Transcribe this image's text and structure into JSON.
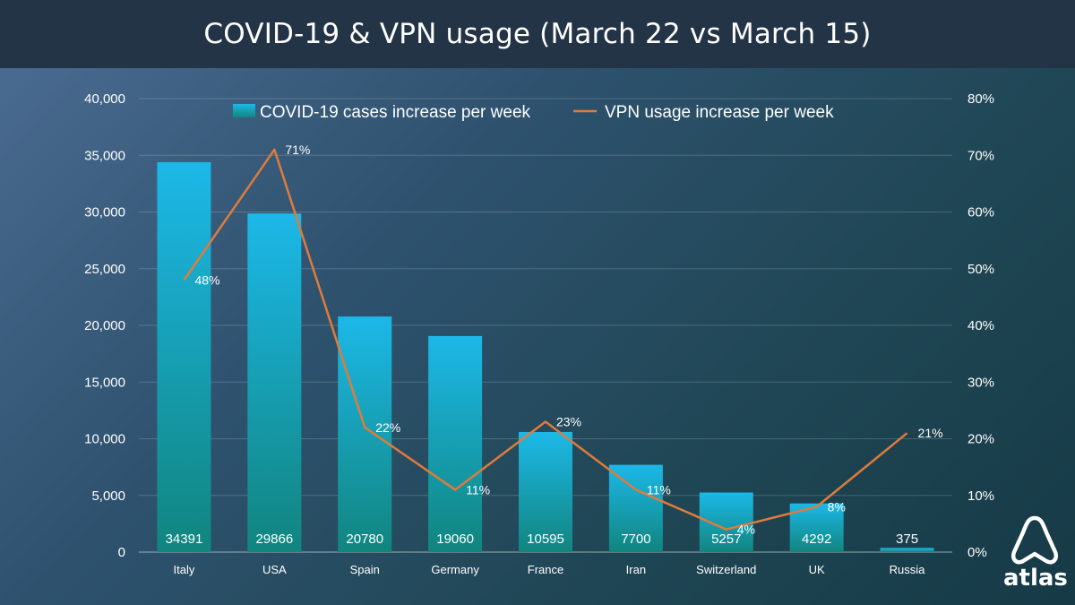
{
  "title": "COVID-19 & VPN usage (March 22 vs March 15)",
  "chart_data": {
    "type": "bar",
    "title": "COVID-19 & VPN usage (March 22 vs March 15)",
    "categories": [
      "Italy",
      "USA",
      "Spain",
      "Germany",
      "France",
      "Iran",
      "Switzerland",
      "UK",
      "Russia"
    ],
    "series": [
      {
        "name": "COVID-19 cases increase per week",
        "type": "bar",
        "axis": "left",
        "values": [
          34391,
          29866,
          20780,
          19060,
          10595,
          7700,
          5257,
          4292,
          375
        ],
        "labels": [
          "34391",
          "29866",
          "20780",
          "19060",
          "10595",
          "7700",
          "5257",
          "4292",
          "375"
        ]
      },
      {
        "name": "VPN usage increase per week",
        "type": "line",
        "axis": "right",
        "values": [
          48,
          71,
          22,
          11,
          23,
          11,
          4,
          8,
          21
        ],
        "labels": [
          "48%",
          "71%",
          "22%",
          "11%",
          "23%",
          "11%",
          "4%",
          "8%",
          "21%"
        ]
      }
    ],
    "y_left": {
      "min": 0,
      "max": 40000,
      "ticks": [
        "0",
        "5,000",
        "10,000",
        "15,000",
        "20,000",
        "25,000",
        "30,000",
        "35,000",
        "40,000"
      ]
    },
    "y_right": {
      "min": 0,
      "max": 80,
      "ticks": [
        "0%",
        "10%",
        "20%",
        "30%",
        "40%",
        "50%",
        "60%",
        "70%",
        "80%"
      ]
    },
    "grid": true,
    "legend": "top"
  },
  "colors": {
    "bar_top": "#1cb8e8",
    "bar_bottom": "#11857e",
    "line": "#e07b3a"
  },
  "logo": {
    "name": "atlas-logo-icon",
    "text": "atlas"
  }
}
